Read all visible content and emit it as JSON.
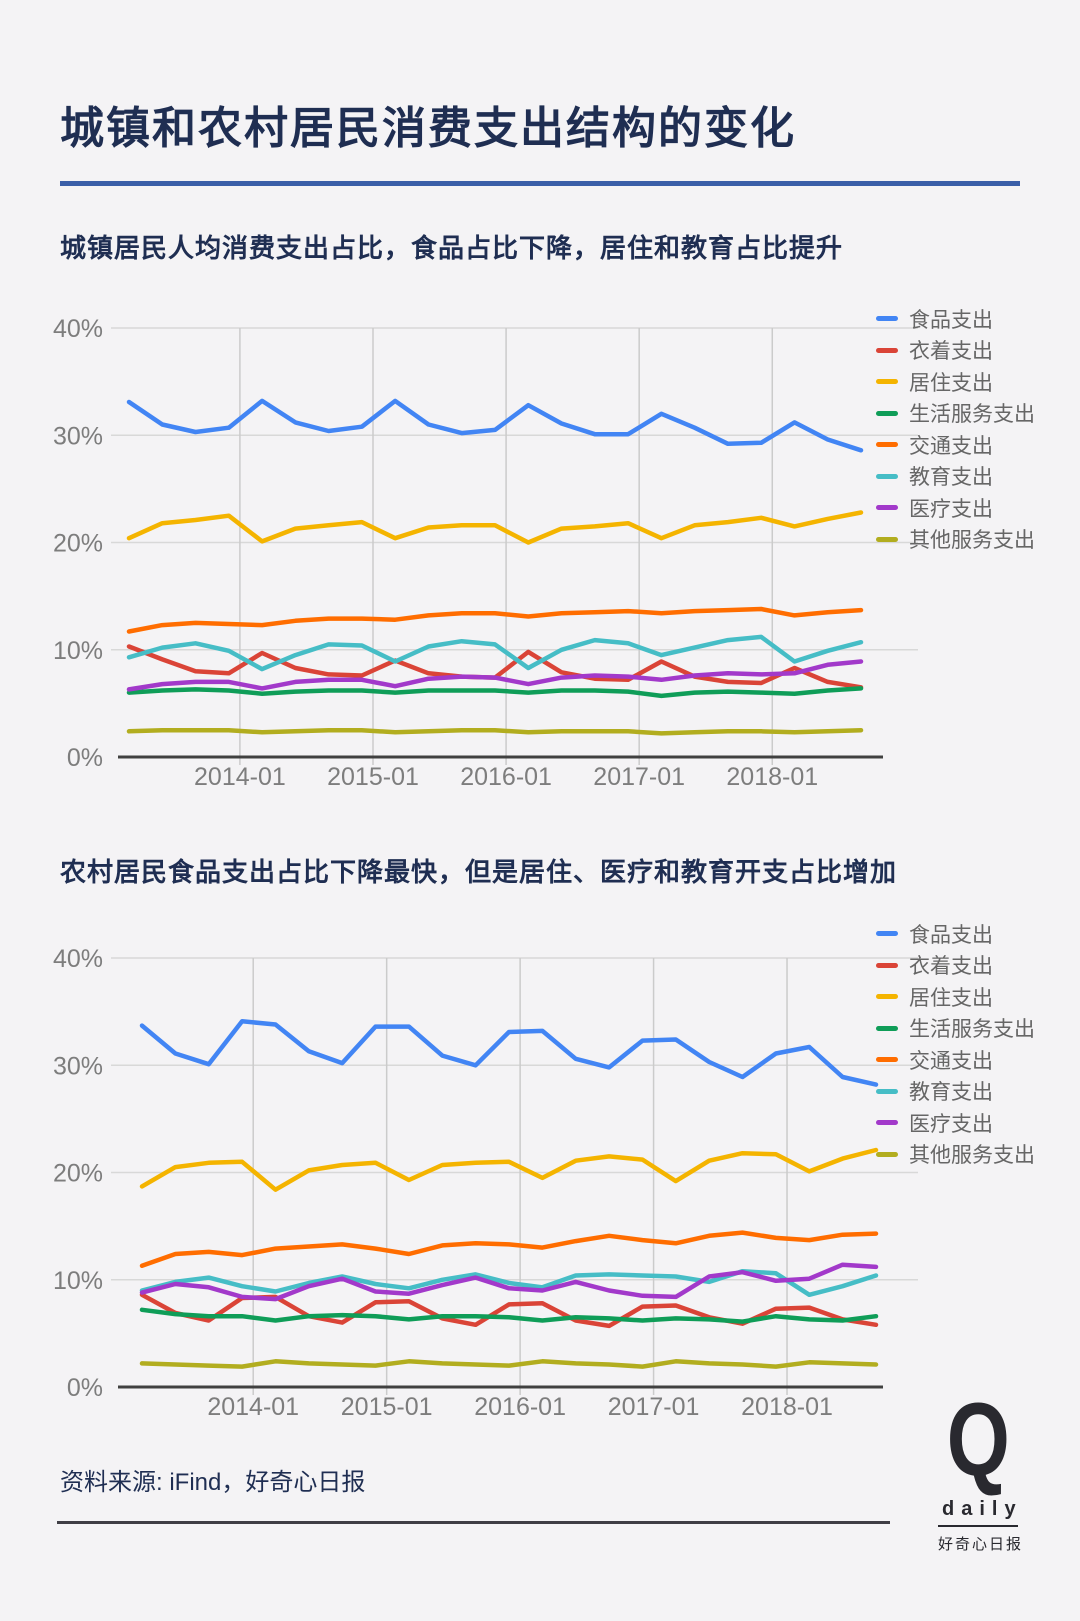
{
  "title": "城镇和农村居民消费支出结构的变化",
  "source_note": "资料来源: iFind，好奇心日报",
  "logo": {
    "q": "Q",
    "daily": "daily",
    "cn": "好奇心日报"
  },
  "colors": {
    "background": "#f4f3f5",
    "title_text": "#1f2e52",
    "title_rule": "#3a5fa8",
    "axis_text": "#7d7d7d",
    "h_gridline": "#d8d8d8",
    "v_gridline": "#cbcbcb",
    "x_axis_line": "#404040",
    "legend_text": "#666666"
  },
  "chart_data": [
    {
      "type": "line",
      "title": "城镇居民人均消费支出占比，食品占比下降，居住和教育占比提升",
      "xlabel": "",
      "ylabel": "",
      "ylim": [
        0,
        40
      ],
      "grid": true,
      "legend_position": "right",
      "y_ticks": [
        "0%",
        "10%",
        "20%",
        "30%",
        "40%"
      ],
      "x_tick_labels": [
        "2014-01",
        "2015-01",
        "2016-01",
        "2017-01",
        "2018-01"
      ],
      "x": [
        "2013-03",
        "2013-06",
        "2013-09",
        "2013-12",
        "2014-03",
        "2014-06",
        "2014-09",
        "2014-12",
        "2015-03",
        "2015-06",
        "2015-09",
        "2015-12",
        "2016-03",
        "2016-06",
        "2016-09",
        "2016-12",
        "2017-03",
        "2017-06",
        "2017-09",
        "2017-12",
        "2018-03",
        "2018-06",
        "2018-09"
      ],
      "series": [
        {
          "id": "food",
          "name": "食品支出",
          "color": "#4285f4",
          "values": [
            33.1,
            31.0,
            30.3,
            30.7,
            33.2,
            31.2,
            30.4,
            30.8,
            33.2,
            31.0,
            30.2,
            30.5,
            32.8,
            31.1,
            30.1,
            30.1,
            32.0,
            30.7,
            29.2,
            29.3,
            31.2,
            29.6,
            28.6
          ]
        },
        {
          "id": "clothing",
          "name": "衣着支出",
          "color": "#da4437",
          "values": [
            10.3,
            9.1,
            8.0,
            7.8,
            9.7,
            8.3,
            7.7,
            7.6,
            9.0,
            7.8,
            7.5,
            7.4,
            9.8,
            7.9,
            7.3,
            7.2,
            8.9,
            7.5,
            7.0,
            6.9,
            8.3,
            7.0,
            6.5
          ]
        },
        {
          "id": "housing",
          "name": "居住支出",
          "color": "#f4b400",
          "values": [
            20.4,
            21.8,
            22.1,
            22.5,
            20.1,
            21.3,
            21.6,
            21.9,
            20.4,
            21.4,
            21.6,
            21.6,
            20.0,
            21.3,
            21.5,
            21.8,
            20.4,
            21.6,
            21.9,
            22.3,
            21.5,
            22.2,
            22.8
          ]
        },
        {
          "id": "life-services",
          "name": "生活服务支出",
          "color": "#0f9d58",
          "values": [
            6.0,
            6.2,
            6.3,
            6.2,
            5.9,
            6.1,
            6.2,
            6.2,
            6.0,
            6.2,
            6.2,
            6.2,
            6.0,
            6.2,
            6.2,
            6.1,
            5.7,
            6.0,
            6.1,
            6.0,
            5.9,
            6.2,
            6.4
          ]
        },
        {
          "id": "transport",
          "name": "交通支出",
          "color": "#ff6d00",
          "values": [
            11.7,
            12.3,
            12.5,
            12.4,
            12.3,
            12.7,
            12.9,
            12.9,
            12.8,
            13.2,
            13.4,
            13.4,
            13.1,
            13.4,
            13.5,
            13.6,
            13.4,
            13.6,
            13.7,
            13.8,
            13.2,
            13.5,
            13.7
          ]
        },
        {
          "id": "education",
          "name": "教育支出",
          "color": "#46bdc6",
          "values": [
            9.3,
            10.2,
            10.6,
            9.9,
            8.2,
            9.5,
            10.5,
            10.4,
            8.9,
            10.3,
            10.8,
            10.5,
            8.3,
            10.0,
            10.9,
            10.6,
            9.5,
            10.2,
            10.9,
            11.2,
            8.9,
            9.9,
            10.7
          ]
        },
        {
          "id": "medical",
          "name": "医疗支出",
          "color": "#a239ca",
          "values": [
            6.3,
            6.8,
            7.0,
            7.0,
            6.4,
            7.0,
            7.2,
            7.2,
            6.6,
            7.3,
            7.5,
            7.4,
            6.8,
            7.4,
            7.6,
            7.5,
            7.2,
            7.6,
            7.8,
            7.7,
            7.8,
            8.6,
            8.9
          ]
        },
        {
          "id": "other-services",
          "name": "其他服务支出",
          "color": "#b2ad1f",
          "values": [
            2.4,
            2.5,
            2.5,
            2.5,
            2.3,
            2.4,
            2.5,
            2.5,
            2.3,
            2.4,
            2.5,
            2.5,
            2.3,
            2.4,
            2.4,
            2.4,
            2.2,
            2.3,
            2.4,
            2.4,
            2.3,
            2.4,
            2.5
          ]
        }
      ]
    },
    {
      "type": "line",
      "title": "农村居民食品支出占比下降最快，但是居住、医疗和教育开支占比增加",
      "xlabel": "",
      "ylabel": "",
      "ylim": [
        0,
        40
      ],
      "grid": true,
      "legend_position": "right",
      "y_ticks": [
        "0%",
        "10%",
        "20%",
        "30%",
        "40%"
      ],
      "x_tick_labels": [
        "2014-01",
        "2015-01",
        "2016-01",
        "2017-01",
        "2018-01"
      ],
      "x": [
        "2013-03",
        "2013-06",
        "2013-09",
        "2013-12",
        "2014-03",
        "2014-06",
        "2014-09",
        "2014-12",
        "2015-03",
        "2015-06",
        "2015-09",
        "2015-12",
        "2016-03",
        "2016-06",
        "2016-09",
        "2016-12",
        "2017-03",
        "2017-06",
        "2017-09",
        "2017-12",
        "2018-03",
        "2018-06",
        "2018-09"
      ],
      "series": [
        {
          "id": "food",
          "name": "食品支出",
          "color": "#4285f4",
          "values": [
            33.7,
            31.1,
            30.1,
            34.1,
            33.8,
            31.3,
            30.2,
            33.6,
            33.6,
            30.9,
            30.0,
            33.1,
            33.2,
            30.6,
            29.8,
            32.3,
            32.4,
            30.3,
            28.9,
            31.1,
            31.7,
            28.9,
            28.2
          ]
        },
        {
          "id": "clothing",
          "name": "衣着支出",
          "color": "#da4437",
          "values": [
            8.6,
            6.9,
            6.2,
            8.3,
            8.4,
            6.6,
            6.0,
            7.9,
            8.0,
            6.4,
            5.8,
            7.7,
            7.8,
            6.2,
            5.7,
            7.5,
            7.6,
            6.5,
            5.9,
            7.3,
            7.4,
            6.3,
            5.8
          ]
        },
        {
          "id": "housing",
          "name": "居住支出",
          "color": "#f4b400",
          "values": [
            18.7,
            20.5,
            20.9,
            21.0,
            18.4,
            20.2,
            20.7,
            20.9,
            19.3,
            20.7,
            20.9,
            21.0,
            19.5,
            21.1,
            21.5,
            21.2,
            19.2,
            21.1,
            21.8,
            21.7,
            20.1,
            21.3,
            22.1
          ]
        },
        {
          "id": "life-services",
          "name": "生活服务支出",
          "color": "#0f9d58",
          "values": [
            7.2,
            6.8,
            6.6,
            6.6,
            6.2,
            6.6,
            6.7,
            6.6,
            6.3,
            6.6,
            6.6,
            6.5,
            6.2,
            6.5,
            6.4,
            6.2,
            6.4,
            6.3,
            6.1,
            6.6,
            6.3,
            6.2,
            6.6
          ]
        },
        {
          "id": "transport",
          "name": "交通支出",
          "color": "#ff6d00",
          "values": [
            11.3,
            12.4,
            12.6,
            12.3,
            12.9,
            13.1,
            13.3,
            12.9,
            12.4,
            13.2,
            13.4,
            13.3,
            13.0,
            13.6,
            14.1,
            13.7,
            13.4,
            14.1,
            14.4,
            13.9,
            13.7,
            14.2,
            14.3
          ]
        },
        {
          "id": "education",
          "name": "教育支出",
          "color": "#46bdc6",
          "values": [
            9.0,
            9.8,
            10.2,
            9.4,
            8.9,
            9.7,
            10.3,
            9.6,
            9.2,
            10.0,
            10.5,
            9.7,
            9.3,
            10.4,
            10.5,
            10.4,
            10.3,
            9.8,
            10.8,
            10.6,
            8.6,
            9.4,
            10.4
          ]
        },
        {
          "id": "medical",
          "name": "医疗支出",
          "color": "#a239ca",
          "values": [
            8.8,
            9.6,
            9.3,
            8.4,
            8.2,
            9.4,
            10.1,
            8.9,
            8.7,
            9.5,
            10.2,
            9.2,
            9.0,
            9.8,
            9.0,
            8.5,
            8.4,
            10.3,
            10.7,
            9.9,
            10.1,
            11.4,
            11.2
          ]
        },
        {
          "id": "other-services",
          "name": "其他服务支出",
          "color": "#b2ad1f",
          "values": [
            2.2,
            2.1,
            2.0,
            1.9,
            2.4,
            2.2,
            2.1,
            2.0,
            2.4,
            2.2,
            2.1,
            2.0,
            2.4,
            2.2,
            2.1,
            1.9,
            2.4,
            2.2,
            2.1,
            1.9,
            2.3,
            2.2,
            2.1
          ]
        }
      ]
    }
  ]
}
